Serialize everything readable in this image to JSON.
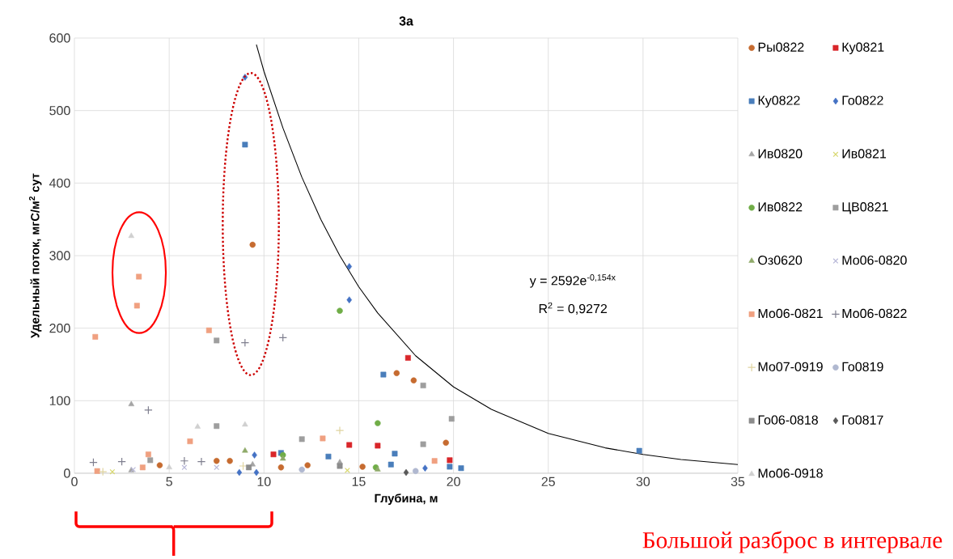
{
  "chart_data": {
    "type": "scatter",
    "title": "3а",
    "xlabel": "Глубина, м",
    "ylabel": "Удельный поток, мгС/м$^{2}$ сут",
    "xlim": [
      0,
      35
    ],
    "ylim": [
      0,
      600
    ],
    "xticks": [
      0,
      5,
      10,
      15,
      20,
      25,
      30,
      35
    ],
    "yticks": [
      0,
      100,
      200,
      300,
      400,
      500,
      600
    ],
    "grid": true,
    "legend": "right",
    "annotations": [
      "y = 2592e$^{-0,154x}$",
      "R$^{2}$ = 0,9272",
      "Большой разброс в интервале"
    ],
    "series": [
      {
        "name": "Ры0822",
        "color": "#c66b30",
        "marker": "circle",
        "x": [
          4.5,
          7.5,
          8.2,
          9.4,
          10.9,
          12.3,
          15.2,
          17.0,
          17.9,
          19.6
        ],
        "values": [
          11,
          17,
          17,
          315,
          8,
          11,
          9,
          138,
          128,
          42
        ]
      },
      {
        "name": "Ку0821",
        "color": "#d9262a",
        "marker": "square",
        "x": [
          10.5,
          14.5,
          16.0,
          17.6,
          19.8
        ],
        "values": [
          26,
          39,
          38,
          159,
          18
        ]
      },
      {
        "name": "Ку0822",
        "color": "#4a7ebb",
        "marker": "square",
        "x": [
          9.0,
          10.9,
          13.4,
          16.3,
          16.7,
          16.9,
          19.8,
          20.4,
          29.8
        ],
        "values": [
          453,
          28,
          23,
          136,
          12,
          27,
          9,
          7,
          31
        ]
      },
      {
        "name": "Го0822",
        "color": "#4472c4",
        "marker": "diamond",
        "x": [
          8.7,
          9.0,
          9.5,
          9.6,
          14.5,
          14.5,
          18.5
        ],
        "values": [
          1,
          546,
          25,
          1,
          285,
          239,
          7
        ]
      },
      {
        "name": "Ив0820",
        "color": "#a5a5a5",
        "marker": "triangle",
        "x": [
          3.0,
          3.0,
          5.0,
          9.4,
          14.0
        ],
        "values": [
          95,
          4,
          null,
          12,
          15
        ]
      },
      {
        "name": "Ив0821",
        "color": "#d8d870",
        "marker": "cross",
        "x": [
          2.0,
          14.4
        ],
        "values": [
          2,
          4
        ]
      },
      {
        "name": "Ив0822",
        "color": "#70ad47",
        "marker": "circle",
        "x": [
          11.0,
          14.0,
          15.9,
          16.0
        ],
        "values": [
          25,
          224,
          8,
          69
        ]
      },
      {
        "name": "ЦВ0821",
        "color": "#9e9e9e",
        "marker": "square",
        "x": [
          4.0,
          7.5,
          7.5,
          12.0,
          18.4,
          18.4,
          19.9
        ],
        "values": [
          18,
          183,
          65,
          47,
          121,
          40,
          75
        ]
      },
      {
        "name": "Оз0620",
        "color": "#8faa6a",
        "marker": "triangle",
        "x": [
          9.0,
          11.0,
          16.0
        ],
        "values": [
          31,
          20,
          5
        ]
      },
      {
        "name": "Мо06-0820",
        "color": "#b8b8d8",
        "marker": "cross",
        "x": [
          3.1,
          5.8,
          7.5
        ],
        "values": [
          5,
          8,
          8
        ]
      },
      {
        "name": "Мо06-0821",
        "color": "#f0a080",
        "marker": "square",
        "x": [
          1.1,
          1.2,
          3.3,
          3.4,
          3.6,
          3.9,
          6.1,
          7.1,
          13.1,
          19.0
        ],
        "values": [
          188,
          3,
          231,
          271,
          8,
          26,
          44,
          197,
          48,
          17
        ]
      },
      {
        "name": "Мо06-0822",
        "color": "#7f7f8f",
        "marker": "plus",
        "x": [
          1.0,
          2.5,
          3.9,
          5.8,
          6.7,
          9.0,
          11.0
        ],
        "values": [
          15,
          16,
          87,
          17,
          16,
          180,
          187
        ]
      },
      {
        "name": "Мо07-0919",
        "color": "#e0d4a0",
        "marker": "plus",
        "x": [
          1.5,
          8.9,
          14.0
        ],
        "values": [
          2,
          10,
          59
        ]
      },
      {
        "name": "Го0819",
        "color": "#b0b8d0",
        "marker": "circle",
        "x": [
          12.0,
          18.0
        ],
        "values": [
          5,
          3
        ]
      },
      {
        "name": "Го06-0818",
        "color": "#8c8c8c",
        "marker": "square",
        "x": [
          9.2,
          14.0
        ],
        "values": [
          8,
          10
        ]
      },
      {
        "name": "Го0817",
        "color": "#595959",
        "marker": "diamond",
        "x": [
          17.5
        ],
        "values": [
          1
        ]
      },
      {
        "name": "Мо06-0918",
        "color": "#d0d0d0",
        "marker": "triangle",
        "x": [
          3.0,
          5.0,
          6.5,
          9.0
        ],
        "values": [
          327,
          8,
          64,
          67
        ]
      },
      {
        "type": "line",
        "color": "#000000",
        "marker": "none",
        "x": [
          9.6,
          10,
          11,
          12,
          13,
          14,
          15,
          16,
          18,
          20,
          22,
          25,
          28,
          30,
          32,
          35
        ],
        "values": [
          591,
          554,
          476,
          408,
          350,
          300,
          257,
          221,
          162,
          119,
          88,
          55,
          35,
          26,
          19,
          12
        ]
      }
    ]
  }
}
